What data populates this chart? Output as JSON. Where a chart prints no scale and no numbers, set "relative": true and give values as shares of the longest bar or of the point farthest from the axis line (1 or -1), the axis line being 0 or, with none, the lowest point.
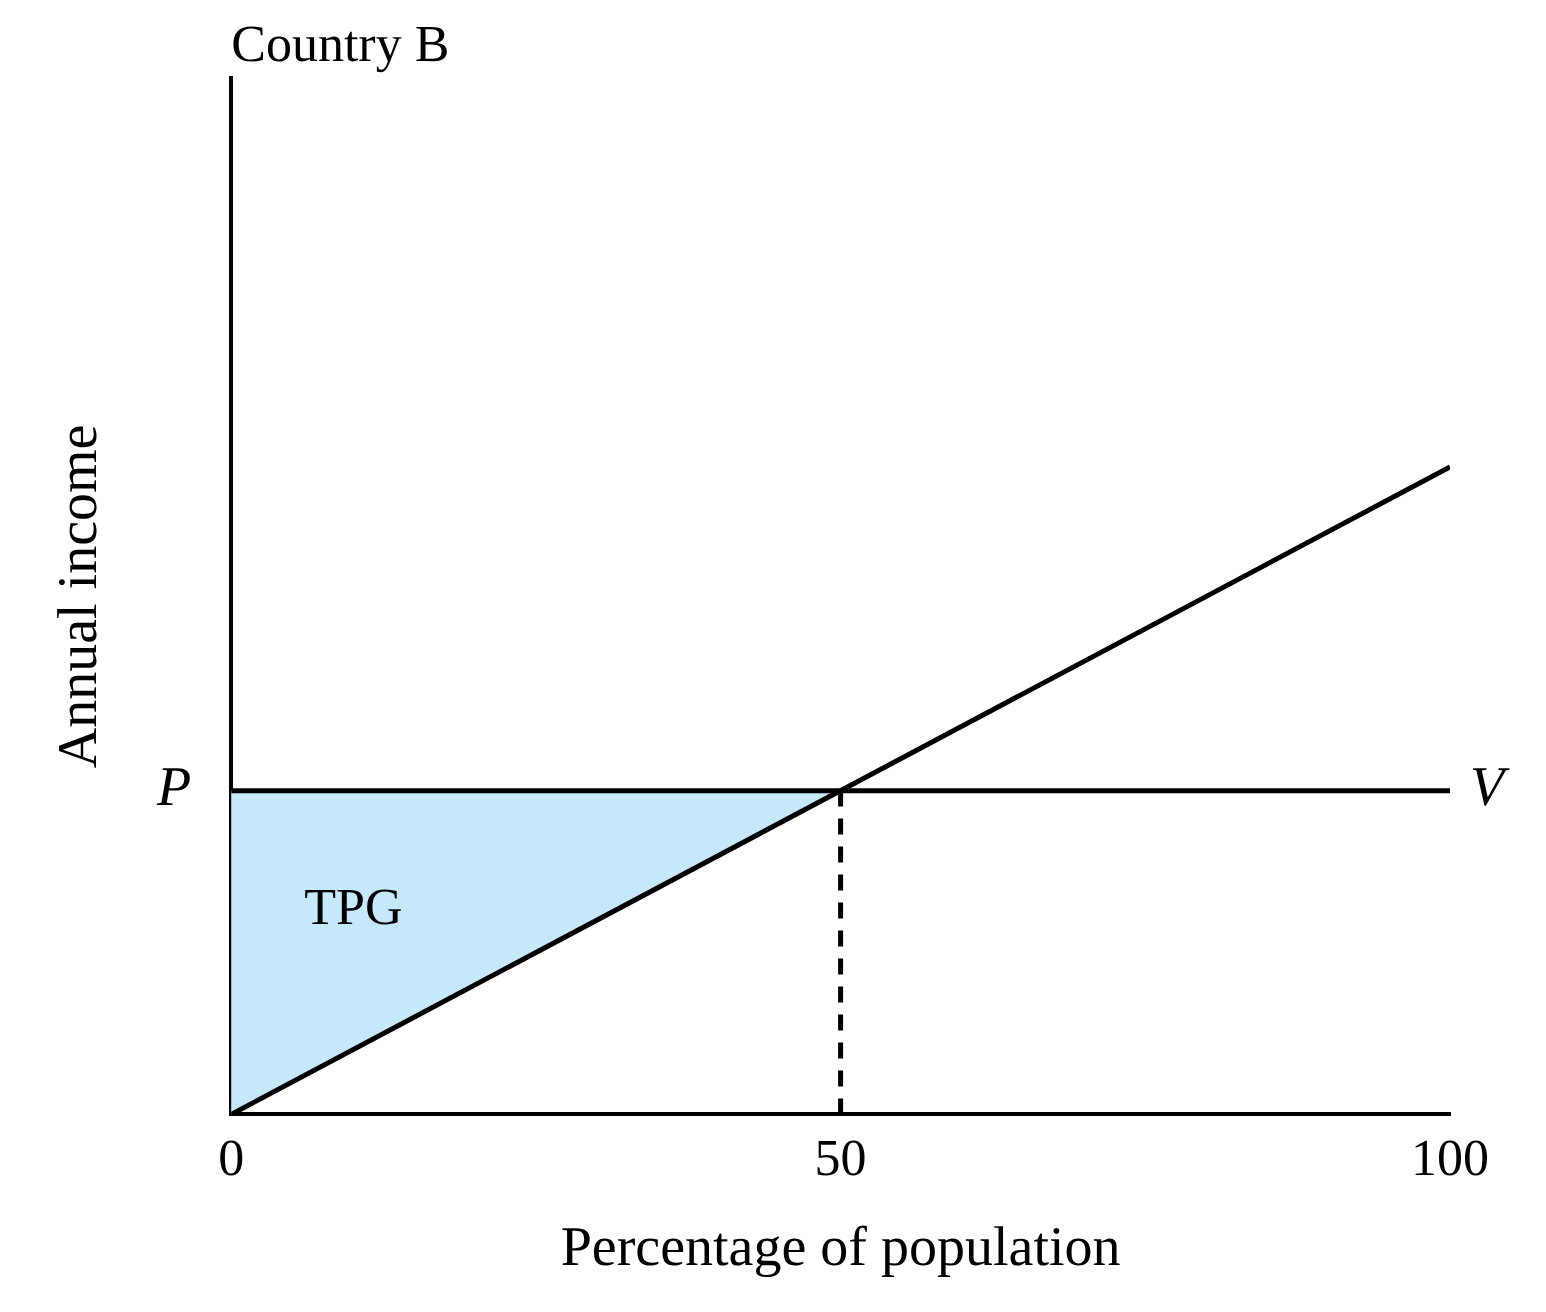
{
  "chart_data": {
    "type": "line",
    "title": "Country B",
    "xlabel": "Percentage of population",
    "ylabel": "Annual income",
    "relative": true,
    "xlim": [
      0,
      100
    ],
    "xticks": [
      0,
      50,
      100
    ],
    "grid": false,
    "legend": false,
    "marker": "none",
    "series": [
      {
        "type": "area",
        "color": "#c5e8fb",
        "x": [
          0,
          50
        ],
        "values": [
          0.5,
          0.5
        ]
      },
      {
        "name": "V",
        "color": "#000000",
        "x": [
          0,
          100
        ],
        "values": [
          0.5,
          0.5
        ]
      },
      {
        "color": "#000000",
        "x": [
          0,
          100
        ],
        "values": [
          0,
          1
        ]
      },
      {
        "color": "#000000",
        "x": [
          50,
          50
        ],
        "values": [
          0,
          0.5
        ],
        "line_style": "dashed"
      }
    ],
    "annotations": [
      {
        "text": "P",
        "x": 0,
        "y": 0.5
      },
      "TPG"
    ]
  }
}
